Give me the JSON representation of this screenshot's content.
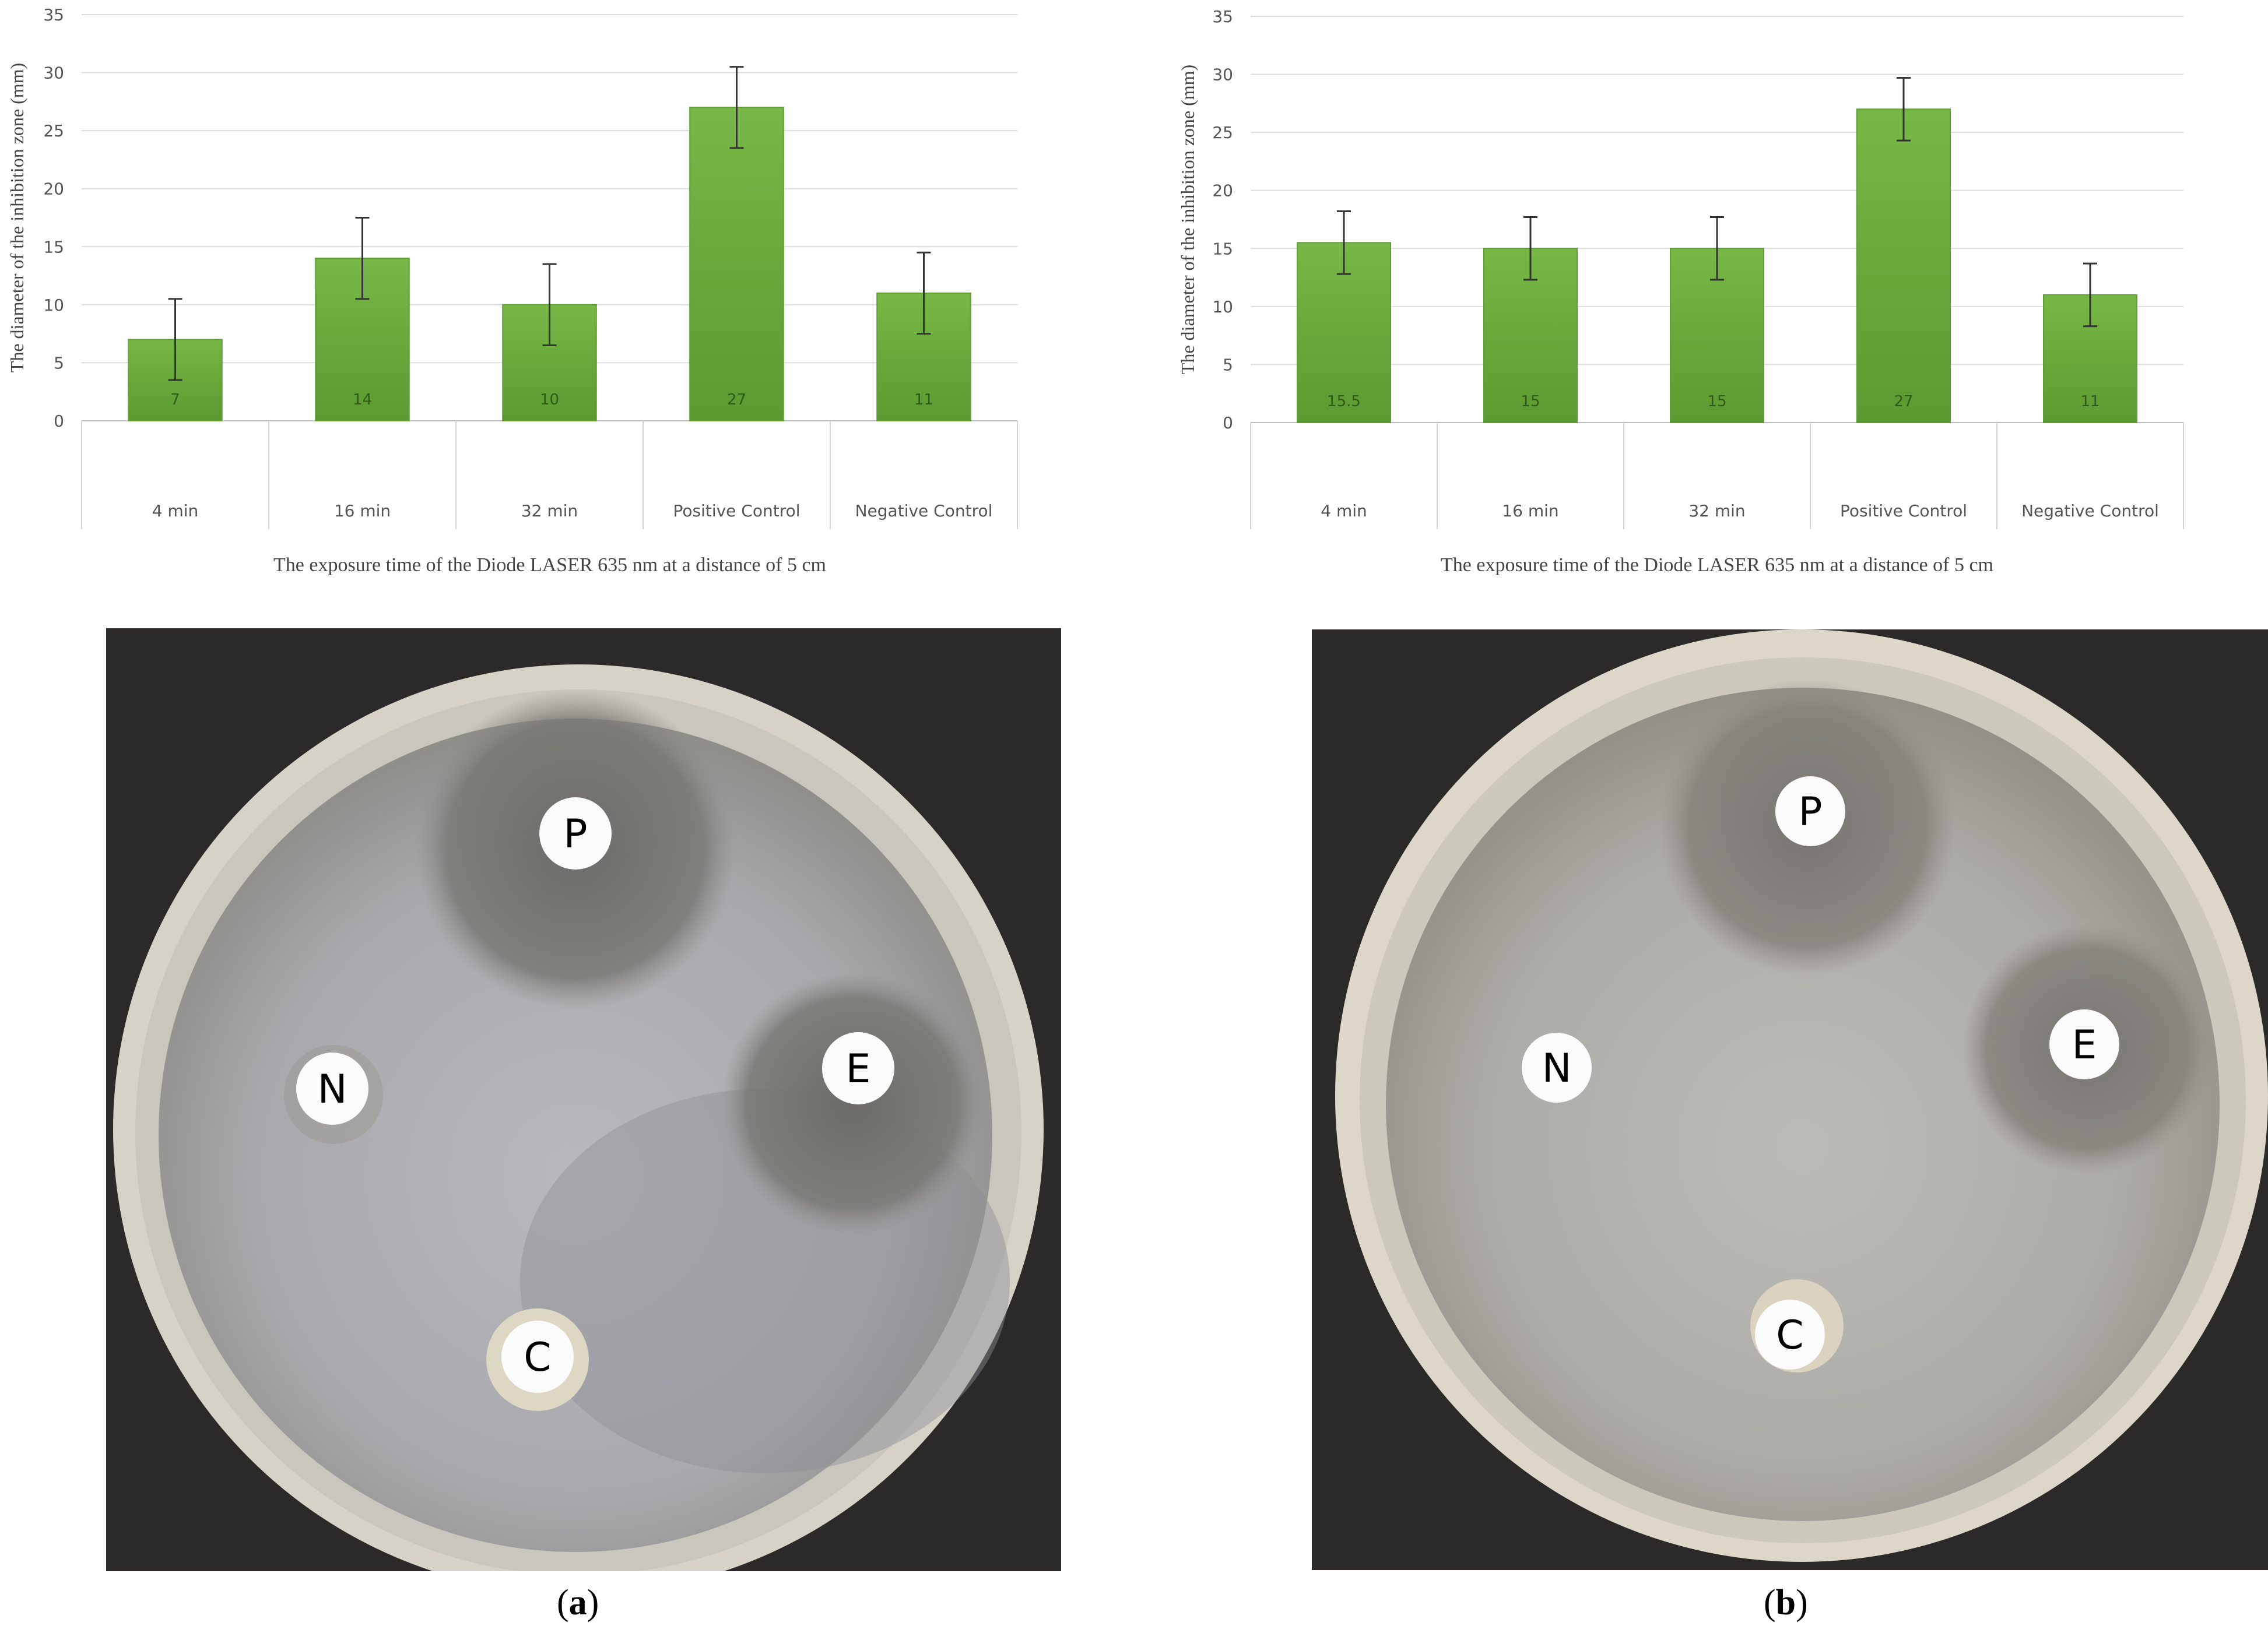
{
  "chart_data": [
    {
      "type": "bar",
      "ylabel": "The diameter of the inhibition zone (mm)",
      "xlabel": "The exposure time of the Diode LASER 635 nm at a distance of 5 cm",
      "categories": [
        "4 min",
        "16 min",
        "32 min",
        "Positive Control",
        "Negative Control"
      ],
      "values": [
        7,
        14,
        10,
        27,
        11
      ],
      "data_labels": [
        "7",
        "14",
        "10",
        "27",
        "11"
      ],
      "error": [
        3.5,
        3.5,
        3.5,
        3.5,
        3.5
      ],
      "ylim": [
        0,
        35
      ],
      "yticks": [
        0,
        5,
        10,
        15,
        20,
        25,
        30,
        35
      ],
      "grid": true,
      "bar_color": "#6aab3e"
    },
    {
      "type": "bar",
      "ylabel": "The diameter of the inhibition zone (mm)",
      "xlabel": "The exposure time of the Diode LASER 635 nm at a distance of 5 cm",
      "categories": [
        "4 min",
        "16 min",
        "32 min",
        "Positive Control",
        "Negative Control"
      ],
      "values": [
        15.5,
        15,
        15,
        27,
        11
      ],
      "data_labels": [
        "15.5",
        "15",
        "15",
        "27",
        "11"
      ],
      "error": [
        2.7,
        2.7,
        2.7,
        2.7,
        2.7
      ],
      "ylim": [
        0,
        35
      ],
      "yticks": [
        0,
        5,
        10,
        15,
        20,
        25,
        30,
        35
      ],
      "grid": true,
      "bar_color": "#6aab3e"
    }
  ],
  "photos": [
    {
      "disks": [
        "P",
        "E",
        "N",
        "C"
      ]
    },
    {
      "disks": [
        "P",
        "E",
        "N",
        "C"
      ]
    }
  ],
  "captions": [
    "a",
    "b"
  ]
}
